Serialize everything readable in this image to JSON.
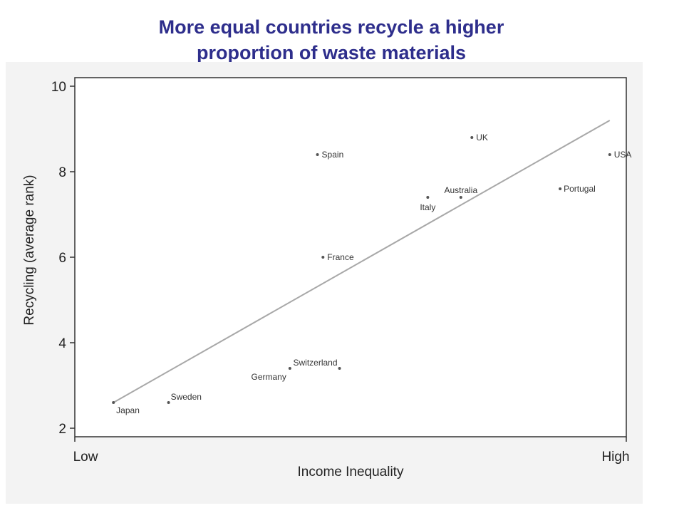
{
  "slide": {
    "title_line1": "More equal countries recycle a higher",
    "title_line2": "proportion of waste materials",
    "title_color": "#2e2e8c"
  },
  "chart_data": {
    "type": "scatter",
    "xlabel": "Income Inequality",
    "ylabel": "Recycling (average rank)",
    "x_tick_labels": [
      "Low",
      "High"
    ],
    "xlim": [
      0,
      1
    ],
    "ylim": [
      2,
      10
    ],
    "y_ticks": [
      2,
      4,
      6,
      8,
      10
    ],
    "grid": false,
    "colors": {
      "panel": "#f3f3f3",
      "plot": "#ffffff",
      "point": "#555555",
      "fit_line": "#a8a8a8"
    },
    "points": [
      {
        "label": "Japan",
        "x": 0.07,
        "y": 2.6
      },
      {
        "label": "Sweden",
        "x": 0.17,
        "y": 2.6
      },
      {
        "label": "Germany",
        "x": 0.39,
        "y": 3.4
      },
      {
        "label": "Switzerland",
        "x": 0.48,
        "y": 3.4
      },
      {
        "label": "France",
        "x": 0.45,
        "y": 6.0
      },
      {
        "label": "Spain",
        "x": 0.44,
        "y": 8.4
      },
      {
        "label": "Italy",
        "x": 0.64,
        "y": 7.4
      },
      {
        "label": "Australia",
        "x": 0.7,
        "y": 7.4
      },
      {
        "label": "UK",
        "x": 0.72,
        "y": 8.8
      },
      {
        "label": "Portugal",
        "x": 0.88,
        "y": 7.6
      },
      {
        "label": "USA",
        "x": 0.97,
        "y": 8.4
      }
    ],
    "fit_line": {
      "x": [
        0.07,
        0.97
      ],
      "y": [
        2.6,
        9.2
      ]
    }
  }
}
